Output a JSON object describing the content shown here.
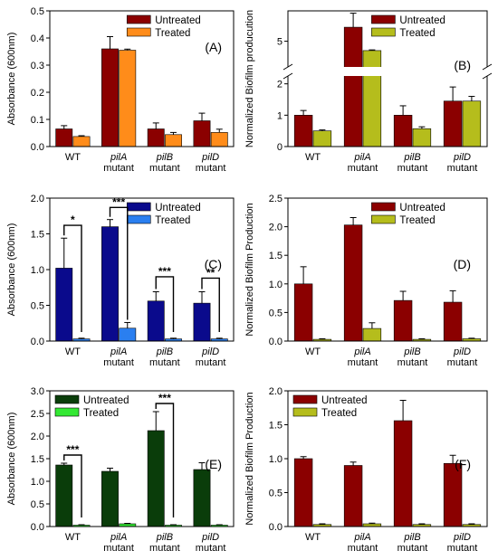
{
  "chart_data": [
    {
      "id": "A",
      "type": "bar",
      "panel_label": "(A)",
      "ylabel": "Absorbance (600nm)",
      "ylim": [
        0,
        0.5
      ],
      "yticks": [
        0,
        0.1,
        0.2,
        0.3,
        0.4,
        0.5
      ],
      "yticklabels": [
        "0.0",
        "0.1",
        "0.2",
        "0.3",
        "0.4",
        "0.5"
      ],
      "categories": [
        {
          "line1": "WT",
          "line2": ""
        },
        {
          "line1": "pilA",
          "line2": "mutant"
        },
        {
          "line1": "pilB",
          "line2": "mutant"
        },
        {
          "line1": "pilD",
          "line2": "mutant"
        }
      ],
      "series": [
        {
          "name": "Untreated",
          "color": "#8b0000",
          "values": [
            0.065,
            0.36,
            0.065,
            0.095
          ],
          "errors": [
            0.012,
            0.045,
            0.022,
            0.028
          ]
        },
        {
          "name": "Treated",
          "color": "#ff8c1a",
          "values": [
            0.037,
            0.355,
            0.044,
            0.052
          ],
          "errors": [
            0.003,
            0.004,
            0.008,
            0.012
          ]
        }
      ],
      "legend": "top-right",
      "significance": []
    },
    {
      "id": "B",
      "type": "bar",
      "panel_label": "(B)",
      "ylabel": "Normalized Biofilm producution",
      "broken_axis": true,
      "ylim_lower": [
        0,
        2.25
      ],
      "ylim_upper": [
        3.9,
        6.3
      ],
      "yticks_lower": [
        0,
        1,
        2
      ],
      "yticks_upper": [
        5
      ],
      "yticklabels_lower": [
        "0",
        "1",
        "2"
      ],
      "yticklabels_upper": [
        "5"
      ],
      "categories": [
        {
          "line1": "WT",
          "line2": ""
        },
        {
          "line1": "pilA",
          "line2": "mutant"
        },
        {
          "line1": "pilB",
          "line2": "mutant"
        },
        {
          "line1": "pilD",
          "line2": "mutant"
        }
      ],
      "series": [
        {
          "name": "Untreated",
          "color": "#8b0000",
          "values": [
            1.0,
            5.6,
            1.0,
            1.45
          ],
          "errors": [
            0.15,
            0.6,
            0.3,
            0.45
          ]
        },
        {
          "name": "Treated",
          "color": "#b5bd1c",
          "values": [
            0.5,
            4.6,
            0.57,
            1.45
          ],
          "errors": [
            0.03,
            0.03,
            0.06,
            0.15
          ]
        }
      ],
      "legend": "top-right",
      "significance": []
    },
    {
      "id": "C",
      "type": "bar",
      "panel_label": "(C)",
      "ylabel": "Absorbance (600nm)",
      "ylim": [
        0,
        2.0
      ],
      "yticks": [
        0,
        0.5,
        1.0,
        1.5,
        2.0
      ],
      "yticklabels": [
        "0.0",
        "0.5",
        "1.0",
        "1.5",
        "2.0"
      ],
      "categories": [
        {
          "line1": "WT",
          "line2": ""
        },
        {
          "line1": "pilA",
          "line2": "mutant"
        },
        {
          "line1": "pilB",
          "line2": "mutant"
        },
        {
          "line1": "pilD",
          "line2": "mutant"
        }
      ],
      "series": [
        {
          "name": "Untreated",
          "color": "#0a0a8c",
          "values": [
            1.02,
            1.6,
            0.56,
            0.53
          ],
          "errors": [
            0.42,
            0.1,
            0.13,
            0.16
          ]
        },
        {
          "name": "Treated",
          "color": "#2a7ff0",
          "values": [
            0.03,
            0.18,
            0.03,
            0.03
          ],
          "errors": [
            0.01,
            0.08,
            0.01,
            0.01
          ]
        }
      ],
      "legend": "top-right",
      "significance": [
        {
          "cat": 0,
          "label": "*",
          "y": 1.62
        },
        {
          "cat": 1,
          "label": "***",
          "y": 1.87
        },
        {
          "cat": 2,
          "label": "***",
          "y": 0.9
        },
        {
          "cat": 3,
          "label": "**",
          "y": 0.88
        }
      ]
    },
    {
      "id": "D",
      "type": "bar",
      "panel_label": "(D)",
      "ylabel": "Normalized Biofilm Production",
      "ylim": [
        0,
        2.5
      ],
      "yticks": [
        0,
        0.5,
        1.0,
        1.5,
        2.0,
        2.5
      ],
      "yticklabels": [
        "0.0",
        "0.5",
        "1.0",
        "1.5",
        "2.0",
        "2.5"
      ],
      "categories": [
        {
          "line1": "WT",
          "line2": ""
        },
        {
          "line1": "pilA",
          "line2": "mutant"
        },
        {
          "line1": "pilB",
          "line2": "mutant"
        },
        {
          "line1": "pilD",
          "line2": "mutant"
        }
      ],
      "series": [
        {
          "name": "Untreated",
          "color": "#8b0000",
          "values": [
            1.0,
            2.03,
            0.71,
            0.68
          ],
          "errors": [
            0.3,
            0.13,
            0.16,
            0.2
          ]
        },
        {
          "name": "Treated",
          "color": "#b5bd1c",
          "values": [
            0.03,
            0.22,
            0.03,
            0.04
          ],
          "errors": [
            0.01,
            0.1,
            0.01,
            0.01
          ]
        }
      ],
      "legend": "top-right",
      "significance": []
    },
    {
      "id": "E",
      "type": "bar",
      "panel_label": "(E)",
      "ylabel": "Absorbance (600nm)",
      "ylim": [
        0,
        3.0
      ],
      "yticks": [
        0,
        0.5,
        1.0,
        1.5,
        2.0,
        2.5,
        3.0
      ],
      "yticklabels": [
        "0.0",
        "0.5",
        "1.0",
        "1.5",
        "2.0",
        "2.5",
        "3.0"
      ],
      "categories": [
        {
          "line1": "WT",
          "line2": ""
        },
        {
          "line1": "pilA",
          "line2": "mutant"
        },
        {
          "line1": "pilB",
          "line2": "mutant"
        },
        {
          "line1": "pilD",
          "line2": "mutant"
        }
      ],
      "series": [
        {
          "name": "Untreated",
          "color": "#0a3d0a",
          "values": [
            1.36,
            1.22,
            2.12,
            1.26
          ],
          "errors": [
            0.04,
            0.07,
            0.42,
            0.15
          ]
        },
        {
          "name": "Treated",
          "color": "#33e833",
          "values": [
            0.03,
            0.06,
            0.03,
            0.03
          ],
          "errors": [
            0.01,
            0.01,
            0.01,
            0.01
          ]
        }
      ],
      "legend": "top-left",
      "significance": [
        {
          "cat": 0,
          "label": "***",
          "y": 1.58
        },
        {
          "cat": 2,
          "label": "***",
          "y": 2.72
        }
      ]
    },
    {
      "id": "F",
      "type": "bar",
      "panel_label": "(F)",
      "ylabel": "Normalized Biofilm Production",
      "ylim": [
        0,
        2.0
      ],
      "yticks": [
        0,
        0.5,
        1.0,
        1.5,
        2.0
      ],
      "yticklabels": [
        "0.0",
        "0.5",
        "1.0",
        "1.5",
        "2.0"
      ],
      "categories": [
        {
          "line1": "WT",
          "line2": ""
        },
        {
          "line1": "pilA",
          "line2": "mutant"
        },
        {
          "line1": "pilB",
          "line2": "mutant"
        },
        {
          "line1": "pilD",
          "line2": "mutant"
        }
      ],
      "series": [
        {
          "name": "Untreated",
          "color": "#8b0000",
          "values": [
            1.0,
            0.9,
            1.56,
            0.93
          ],
          "errors": [
            0.03,
            0.05,
            0.3,
            0.12
          ]
        },
        {
          "name": "Treated",
          "color": "#b5bd1c",
          "values": [
            0.03,
            0.04,
            0.03,
            0.03
          ],
          "errors": [
            0.01,
            0.01,
            0.01,
            0.01
          ]
        }
      ],
      "legend": "top-left",
      "significance": []
    }
  ]
}
